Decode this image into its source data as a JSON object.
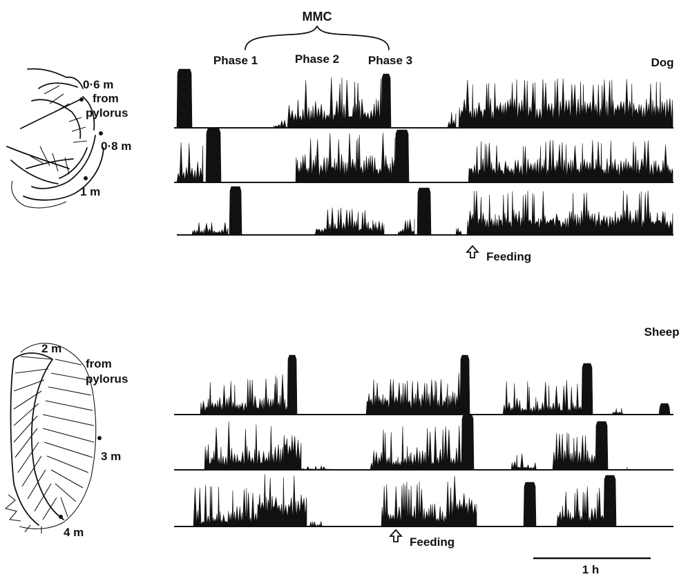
{
  "labels": {
    "mmc": "MMC",
    "phase1": "Phase 1",
    "phase2": "Phase 2",
    "phase3": "Phase 3",
    "feeding": "Feeding",
    "scale": "1 h"
  },
  "dog": {
    "title": "Dog",
    "sites": [
      "0·6 m",
      "from",
      "pylorus",
      "0·8 m",
      "1 m"
    ]
  },
  "sheep": {
    "title": "Sheep",
    "sites": [
      "2 m",
      "from",
      "pylorus",
      "3 m",
      "4 m"
    ]
  },
  "icons": {
    "feeding_arrow": "up-arrow-outline-icon"
  },
  "colors": {
    "ink": "#111111",
    "background": "#ffffff"
  }
}
